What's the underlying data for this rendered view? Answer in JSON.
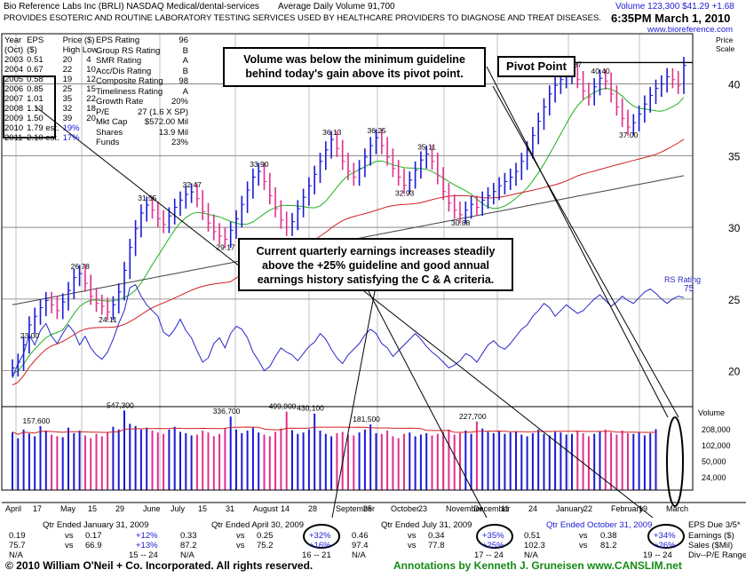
{
  "header": {
    "company": "Bio Reference Labs Inc",
    "symbol": "(BRLI)",
    "exchange": "NASDAQ",
    "industry": "Medical/dental-services",
    "avg_volume": "Average Daily Volume 91,700",
    "volume": "Volume 123,300",
    "price": "$41.29",
    "change": "+1.68",
    "description": "PROVIDES ESOTERIC AND ROUTINE LABORATORY TESTING SERVICES   USED BY HEALTHCARE PROVIDERS TO DIAGNOSE AND TREAT DISEASES.",
    "datetime": "6:35PM March 1, 2010",
    "website": "www.bioreference.com",
    "price_scale": "Price Scale"
  },
  "fundamentals": {
    "headers": [
      "Year",
      "EPS",
      "Price ($)",
      "Year",
      "($)",
      "High Low",
      "(Oct)"
    ],
    "rows": [
      [
        "2003",
        "0.51",
        "20",
        "4"
      ],
      [
        "2004",
        "0.67",
        "22",
        "10"
      ],
      [
        "2005",
        "0.58",
        "19",
        "12"
      ],
      [
        "2006",
        "0.85",
        "25",
        "15"
      ],
      [
        "2007",
        "1.01",
        "35",
        "22"
      ],
      [
        "2008",
        "1.13",
        "32",
        "18"
      ],
      [
        "2009",
        "1.50",
        "39",
        "20"
      ],
      [
        "2010",
        "1.79 est.",
        "19%",
        ""
      ],
      [
        "2011",
        "2.10 est.",
        "17%",
        ""
      ]
    ],
    "ratings": [
      [
        "EPS Rating",
        "96"
      ],
      [
        "Group RS Rating",
        "B"
      ],
      [
        "SMR Rating",
        "A"
      ],
      [
        "Acc/Dis Rating",
        "B"
      ],
      [
        "Composite Rating",
        "98"
      ],
      [
        "Timeliness Rating",
        "A"
      ],
      [
        "Growth Rate",
        "20%"
      ],
      [
        "P/E",
        "27 (1.6 X SP)"
      ],
      [
        "Mkt Cap",
        "$572.00 Mil"
      ],
      [
        "Shares",
        "13.9 Mil"
      ],
      [
        "Funds",
        "23%"
      ]
    ]
  },
  "annotations": {
    "volume_note": "Volume was below the minimum guideline behind today's gain above its pivot point.",
    "pivot": "Pivot Point",
    "earnings_note": "Current quarterly earnings increases steadily above the +25% guideline and good annual earnings history satisfying the C & A criteria."
  },
  "quarters": [
    {
      "title": "Qtr Ended January 31, 2009",
      "eps": "0.19",
      "vs": "vs",
      "prior_eps": "0.17",
      "eps_pct": "+12%",
      "sales": "75.7",
      "prior_sales": "66.9",
      "sales_pct": "+13%",
      "pe": "N/A",
      "range": "15 -- 24"
    },
    {
      "title": "Qtr Ended April 30, 2009",
      "eps": "0.33",
      "vs": "vs",
      "prior_eps": "0.25",
      "eps_pct": "+32%",
      "sales": "87.2",
      "prior_sales": "75.2",
      "sales_pct": "+16%",
      "pe": "N/A",
      "range": "16 -- 21"
    },
    {
      "title": "Qtr Ended July 31, 2009",
      "eps": "0.46",
      "vs": "vs",
      "prior_eps": "0.34",
      "eps_pct": "+35%",
      "sales": "97.4",
      "prior_sales": "77.8",
      "sales_pct": "+25%",
      "pe": "N/A",
      "range": "17 -- 24"
    },
    {
      "title": "Qtr Ended October 31, 2009",
      "eps": "0.51",
      "vs": "vs",
      "prior_eps": "0.38",
      "eps_pct": "+34%",
      "sales": "102.3",
      "prior_sales": "81.2",
      "sales_pct": "+26%",
      "pe": "N/A",
      "range": "19 -- 24"
    }
  ],
  "quarter_labels": {
    "eps_due": "EPS Due 3/5*",
    "earnings": "Earnings ($)",
    "sales": "Sales ($Mil)",
    "div": "Div--P/E Range"
  },
  "footer": {
    "copyright": "© 2010 William O'Neil + Co. Incorporated. All rights reserved.",
    "credit": "Annotations by Kenneth J. Gruneisen www.CANSLIM.net"
  },
  "chart_data": {
    "type": "bar",
    "price_axis": {
      "ticks": [
        20,
        25,
        30,
        35,
        40
      ],
      "ylim": [
        17.5,
        43.5
      ]
    },
    "volume_axis": {
      "label": "Volume",
      "ticks": [
        "208,000",
        "102,000",
        "50,000",
        "24,000"
      ]
    },
    "x_labels": [
      "April",
      "17",
      "May",
      "15",
      "29",
      "June",
      "July",
      "15",
      "31",
      "August",
      "14",
      "28",
      "September",
      "25",
      "October",
      "23",
      "November",
      "December",
      "11",
      "24",
      "January",
      "22",
      "February",
      "19",
      "March"
    ],
    "price_labels": [
      {
        "text": "23.00",
        "value": 23.0
      },
      {
        "text": "26.78",
        "value": 26.78
      },
      {
        "text": "24.11",
        "value": 24.11
      },
      {
        "text": "31.55",
        "value": 31.55
      },
      {
        "text": "32.47",
        "value": 32.47
      },
      {
        "text": "29.17",
        "value": 29.17
      },
      {
        "text": "33.90",
        "value": 33.9
      },
      {
        "text": "36.13",
        "value": 36.13
      },
      {
        "text": "36.25",
        "value": 36.25
      },
      {
        "text": "32.93",
        "value": 32.93
      },
      {
        "text": "35.11",
        "value": 35.11
      },
      {
        "text": "30.88",
        "value": 30.88
      },
      {
        "text": "40.87",
        "value": 40.87
      },
      {
        "text": "40.40",
        "value": 40.4
      },
      {
        "text": "37.00",
        "value": 37.0
      }
    ],
    "volume_labels": [
      "157,600",
      "547,300",
      "336,700",
      "499,900",
      "430,100",
      "181,500",
      "227,700"
    ],
    "rs_label": "RS Rating",
    "rs_value": "75",
    "pivot_price": 40.87,
    "closes": [
      20.2,
      20.6,
      21.8,
      23.2,
      23.8,
      24.4,
      24.9,
      24.6,
      24.2,
      24.8,
      25.6,
      26.5,
      26.78,
      26.1,
      25.2,
      24.7,
      24.5,
      24.11,
      24.6,
      25.5,
      27.0,
      28.6,
      29.9,
      31.0,
      31.55,
      31.2,
      30.6,
      30.2,
      30.8,
      31.4,
      31.9,
      32.3,
      32.47,
      32.0,
      31.1,
      30.3,
      29.7,
      29.4,
      29.17,
      29.8,
      30.6,
      31.6,
      32.6,
      33.5,
      33.9,
      33.2,
      32.2,
      31.3,
      30.5,
      30.0,
      30.4,
      31.3,
      32.1,
      32.9,
      33.7,
      34.6,
      35.4,
      36.13,
      35.5,
      34.6,
      33.9,
      33.5,
      34.1,
      34.9,
      35.7,
      36.25,
      35.7,
      34.9,
      34.1,
      33.5,
      32.93,
      33.3,
      34.0,
      34.7,
      35.11,
      34.6,
      33.6,
      32.5,
      31.7,
      31.2,
      30.88,
      31.2,
      31.6,
      31.4,
      31.9,
      32.2,
      32.5,
      32.9,
      33.2,
      33.5,
      33.9,
      34.6,
      35.4,
      36.4,
      37.4,
      38.4,
      39.3,
      39.9,
      40.3,
      40.6,
      40.87,
      40.3,
      39.5,
      39.1,
      39.8,
      40.4,
      40.2,
      39.3,
      38.4,
      37.6,
      37.0,
      37.3,
      37.9,
      38.6,
      39.2,
      39.7,
      40.0,
      40.5,
      40.3,
      39.9,
      41.29
    ],
    "volumes": [
      95,
      60,
      120,
      88,
      70,
      157.6,
      110,
      80,
      70,
      65,
      140,
      90,
      110,
      75,
      60,
      85,
      70,
      95,
      150,
      120,
      547.3,
      190,
      160,
      120,
      140,
      110,
      95,
      85,
      120,
      150,
      100,
      90,
      75,
      80,
      110,
      95,
      70,
      85,
      130,
      336.7,
      120,
      90,
      110,
      140,
      95,
      80,
      70,
      100,
      130,
      499.9,
      115,
      85,
      95,
      120,
      430.1,
      110,
      85,
      70,
      90,
      100,
      80,
      75,
      95,
      120,
      181.5,
      90,
      85,
      110,
      70,
      60,
      85,
      95,
      70,
      80,
      90,
      75,
      85,
      100,
      120,
      80,
      90,
      110,
      85,
      227.7,
      130,
      100,
      90,
      110,
      85,
      95,
      100,
      80,
      70,
      90,
      120,
      85,
      75,
      100,
      95,
      80,
      85,
      110,
      90,
      70,
      85,
      100,
      120,
      95,
      80,
      110,
      90,
      85,
      95,
      75,
      90,
      123.3
    ],
    "rs_line": [
      19.5,
      20.5,
      21.2,
      22.5,
      21.8,
      22.8,
      23.3,
      22.4,
      21.9,
      22.6,
      23.2,
      22.7,
      21.8,
      22.4,
      21.6,
      21.1,
      20.8,
      21.3,
      22.2,
      23.3,
      24.2,
      25.8,
      26.0,
      25.2,
      24.6,
      24.2,
      23.8,
      22.7,
      22.4,
      22.9,
      23.6,
      22.8,
      22.3,
      21.4,
      20.6,
      20.9,
      21.9,
      22.3,
      21.6,
      22.6,
      23.1,
      22.9,
      22.3,
      21.3,
      20.7,
      20.0,
      20.3,
      21.0,
      21.6,
      21.3,
      21.1,
      20.7,
      21.2,
      21.7,
      22.0,
      22.6,
      22.2,
      21.5,
      20.9,
      20.5,
      21.1,
      21.5,
      21.9,
      22.5,
      22.9,
      22.6,
      21.9,
      21.6,
      21.0,
      21.4,
      21.8,
      22.2,
      22.6,
      22.2,
      21.7,
      21.3,
      21.0,
      20.6,
      20.2,
      20.4,
      20.7,
      21.2,
      21.0,
      20.6,
      21.2,
      21.8,
      22.1,
      21.7,
      21.5,
      21.9,
      22.4,
      22.9,
      23.2,
      23.8,
      24.2,
      24.7,
      24.4,
      23.8,
      24.2,
      24.6,
      24.3,
      24.0,
      24.2,
      24.6,
      25.0,
      25.3,
      24.9,
      24.5,
      24.8,
      25.2,
      24.9,
      24.7,
      25.1,
      25.5,
      25.7,
      25.4,
      25.0,
      24.7,
      25.0,
      25.2,
      25.1
    ]
  }
}
